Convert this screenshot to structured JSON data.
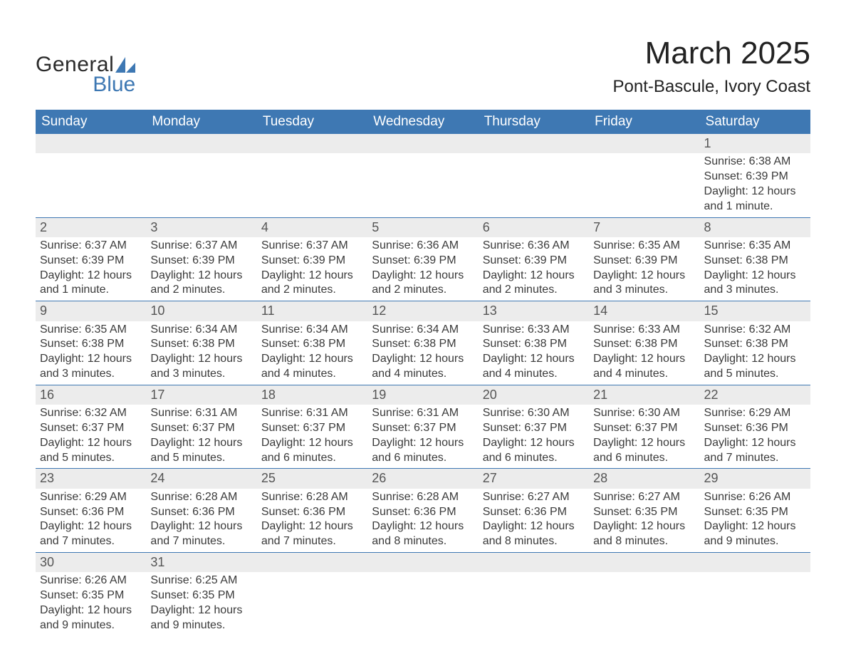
{
  "logo": {
    "text_general": "General",
    "text_blue": "Blue",
    "sail_color": "#3e78b3"
  },
  "header": {
    "month_title": "March 2025",
    "location": "Pont-Bascule, Ivory Coast"
  },
  "colors": {
    "header_bg": "#3e78b3",
    "header_text": "#ffffff",
    "daynum_bg": "#ececec",
    "row_divider": "#3e78b3",
    "body_text": "#3a3a3a",
    "page_bg": "#ffffff"
  },
  "typography": {
    "month_title_fontsize": 44,
    "location_fontsize": 24,
    "dayheader_fontsize": 19,
    "daynum_fontsize": 18,
    "body_fontsize": 16
  },
  "calendar": {
    "day_headers": [
      "Sunday",
      "Monday",
      "Tuesday",
      "Wednesday",
      "Thursday",
      "Friday",
      "Saturday"
    ],
    "weeks": [
      [
        null,
        null,
        null,
        null,
        null,
        null,
        {
          "day": "1",
          "sunrise": "Sunrise: 6:38 AM",
          "sunset": "Sunset: 6:39 PM",
          "daylight": "Daylight: 12 hours and 1 minute."
        }
      ],
      [
        {
          "day": "2",
          "sunrise": "Sunrise: 6:37 AM",
          "sunset": "Sunset: 6:39 PM",
          "daylight": "Daylight: 12 hours and 1 minute."
        },
        {
          "day": "3",
          "sunrise": "Sunrise: 6:37 AM",
          "sunset": "Sunset: 6:39 PM",
          "daylight": "Daylight: 12 hours and 2 minutes."
        },
        {
          "day": "4",
          "sunrise": "Sunrise: 6:37 AM",
          "sunset": "Sunset: 6:39 PM",
          "daylight": "Daylight: 12 hours and 2 minutes."
        },
        {
          "day": "5",
          "sunrise": "Sunrise: 6:36 AM",
          "sunset": "Sunset: 6:39 PM",
          "daylight": "Daylight: 12 hours and 2 minutes."
        },
        {
          "day": "6",
          "sunrise": "Sunrise: 6:36 AM",
          "sunset": "Sunset: 6:39 PM",
          "daylight": "Daylight: 12 hours and 2 minutes."
        },
        {
          "day": "7",
          "sunrise": "Sunrise: 6:35 AM",
          "sunset": "Sunset: 6:39 PM",
          "daylight": "Daylight: 12 hours and 3 minutes."
        },
        {
          "day": "8",
          "sunrise": "Sunrise: 6:35 AM",
          "sunset": "Sunset: 6:38 PM",
          "daylight": "Daylight: 12 hours and 3 minutes."
        }
      ],
      [
        {
          "day": "9",
          "sunrise": "Sunrise: 6:35 AM",
          "sunset": "Sunset: 6:38 PM",
          "daylight": "Daylight: 12 hours and 3 minutes."
        },
        {
          "day": "10",
          "sunrise": "Sunrise: 6:34 AM",
          "sunset": "Sunset: 6:38 PM",
          "daylight": "Daylight: 12 hours and 3 minutes."
        },
        {
          "day": "11",
          "sunrise": "Sunrise: 6:34 AM",
          "sunset": "Sunset: 6:38 PM",
          "daylight": "Daylight: 12 hours and 4 minutes."
        },
        {
          "day": "12",
          "sunrise": "Sunrise: 6:34 AM",
          "sunset": "Sunset: 6:38 PM",
          "daylight": "Daylight: 12 hours and 4 minutes."
        },
        {
          "day": "13",
          "sunrise": "Sunrise: 6:33 AM",
          "sunset": "Sunset: 6:38 PM",
          "daylight": "Daylight: 12 hours and 4 minutes."
        },
        {
          "day": "14",
          "sunrise": "Sunrise: 6:33 AM",
          "sunset": "Sunset: 6:38 PM",
          "daylight": "Daylight: 12 hours and 4 minutes."
        },
        {
          "day": "15",
          "sunrise": "Sunrise: 6:32 AM",
          "sunset": "Sunset: 6:38 PM",
          "daylight": "Daylight: 12 hours and 5 minutes."
        }
      ],
      [
        {
          "day": "16",
          "sunrise": "Sunrise: 6:32 AM",
          "sunset": "Sunset: 6:37 PM",
          "daylight": "Daylight: 12 hours and 5 minutes."
        },
        {
          "day": "17",
          "sunrise": "Sunrise: 6:31 AM",
          "sunset": "Sunset: 6:37 PM",
          "daylight": "Daylight: 12 hours and 5 minutes."
        },
        {
          "day": "18",
          "sunrise": "Sunrise: 6:31 AM",
          "sunset": "Sunset: 6:37 PM",
          "daylight": "Daylight: 12 hours and 6 minutes."
        },
        {
          "day": "19",
          "sunrise": "Sunrise: 6:31 AM",
          "sunset": "Sunset: 6:37 PM",
          "daylight": "Daylight: 12 hours and 6 minutes."
        },
        {
          "day": "20",
          "sunrise": "Sunrise: 6:30 AM",
          "sunset": "Sunset: 6:37 PM",
          "daylight": "Daylight: 12 hours and 6 minutes."
        },
        {
          "day": "21",
          "sunrise": "Sunrise: 6:30 AM",
          "sunset": "Sunset: 6:37 PM",
          "daylight": "Daylight: 12 hours and 6 minutes."
        },
        {
          "day": "22",
          "sunrise": "Sunrise: 6:29 AM",
          "sunset": "Sunset: 6:36 PM",
          "daylight": "Daylight: 12 hours and 7 minutes."
        }
      ],
      [
        {
          "day": "23",
          "sunrise": "Sunrise: 6:29 AM",
          "sunset": "Sunset: 6:36 PM",
          "daylight": "Daylight: 12 hours and 7 minutes."
        },
        {
          "day": "24",
          "sunrise": "Sunrise: 6:28 AM",
          "sunset": "Sunset: 6:36 PM",
          "daylight": "Daylight: 12 hours and 7 minutes."
        },
        {
          "day": "25",
          "sunrise": "Sunrise: 6:28 AM",
          "sunset": "Sunset: 6:36 PM",
          "daylight": "Daylight: 12 hours and 7 minutes."
        },
        {
          "day": "26",
          "sunrise": "Sunrise: 6:28 AM",
          "sunset": "Sunset: 6:36 PM",
          "daylight": "Daylight: 12 hours and 8 minutes."
        },
        {
          "day": "27",
          "sunrise": "Sunrise: 6:27 AM",
          "sunset": "Sunset: 6:36 PM",
          "daylight": "Daylight: 12 hours and 8 minutes."
        },
        {
          "day": "28",
          "sunrise": "Sunrise: 6:27 AM",
          "sunset": "Sunset: 6:35 PM",
          "daylight": "Daylight: 12 hours and 8 minutes."
        },
        {
          "day": "29",
          "sunrise": "Sunrise: 6:26 AM",
          "sunset": "Sunset: 6:35 PM",
          "daylight": "Daylight: 12 hours and 9 minutes."
        }
      ],
      [
        {
          "day": "30",
          "sunrise": "Sunrise: 6:26 AM",
          "sunset": "Sunset: 6:35 PM",
          "daylight": "Daylight: 12 hours and 9 minutes."
        },
        {
          "day": "31",
          "sunrise": "Sunrise: 6:25 AM",
          "sunset": "Sunset: 6:35 PM",
          "daylight": "Daylight: 12 hours and 9 minutes."
        },
        null,
        null,
        null,
        null,
        null
      ]
    ]
  }
}
